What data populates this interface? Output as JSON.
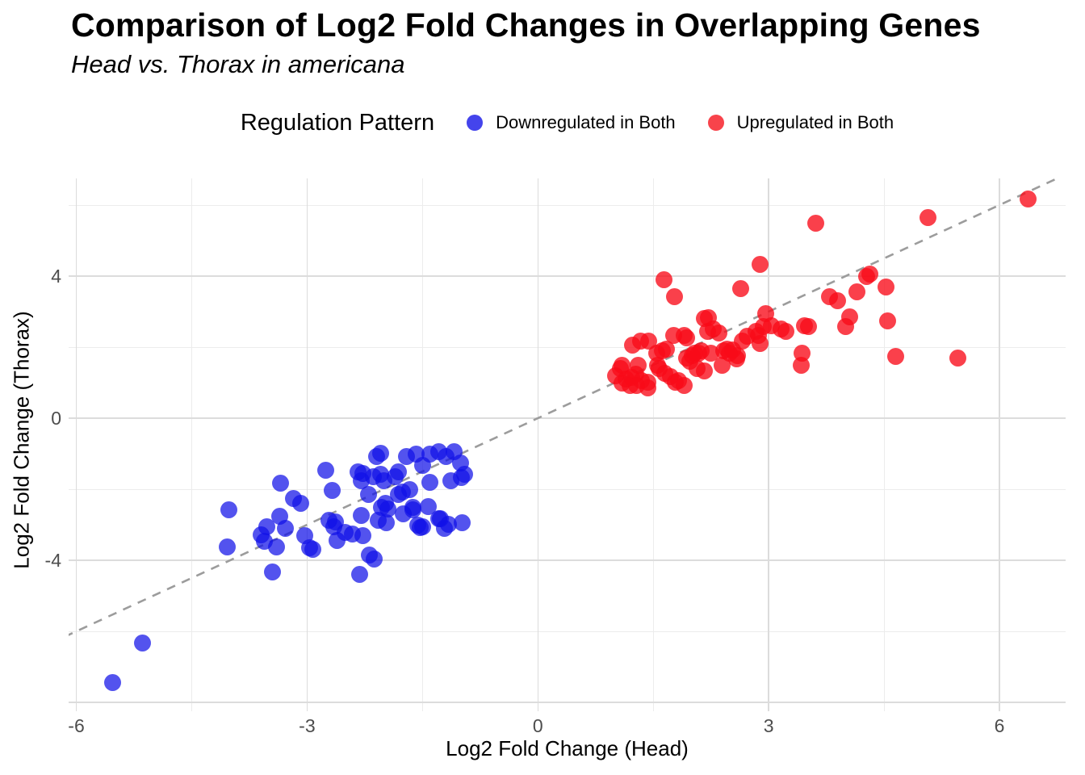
{
  "header": {
    "title": "Comparison of Log2 Fold Changes in Overlapping Genes",
    "subtitle": "Head vs. Thorax in americana"
  },
  "legend": {
    "title": "Regulation Pattern",
    "items": [
      {
        "label": "Downregulated in Both",
        "color": "#4444EC"
      },
      {
        "label": "Upregulated in Both",
        "color": "#F8434B"
      }
    ]
  },
  "chart_data": {
    "type": "scatter",
    "title": "Comparison of Log2 Fold Changes in Overlapping Genes",
    "subtitle": "Head vs. Thorax in americana",
    "xlabel": "Log2 Fold Change (Head)",
    "ylabel": "Log2 Fold Change (Thorax)",
    "xlim": [
      -6.1,
      6.86
    ],
    "ylim": [
      -8.25,
      6.75
    ],
    "x_ticks": [
      -6,
      -3,
      0,
      3,
      6
    ],
    "y_ticks": [
      4,
      0,
      -4
    ],
    "x_tick_labels": [
      "-6",
      "-3",
      "0",
      "3",
      "6"
    ],
    "y_tick_labels": [
      "4",
      "0",
      "-4"
    ],
    "x_major_grid": [
      -6,
      -3,
      0,
      3,
      6
    ],
    "x_minor_grid": [
      -4.5,
      -1.5,
      1.5,
      4.5
    ],
    "y_major_grid": [
      -8,
      -4,
      0,
      4
    ],
    "y_minor_grid": [
      -6,
      -2,
      2,
      6
    ],
    "grid": true,
    "legend_position": "top",
    "reference_line": {
      "style": "dashed",
      "equation": "y = x",
      "color": "#9c9c9c"
    },
    "series": [
      {
        "name": "Downregulated in Both",
        "color": "rgba(16,16,232,0.72)",
        "points": [
          [
            -5.53,
            -7.45
          ],
          [
            -5.14,
            -6.34
          ],
          [
            -4.04,
            -3.62
          ],
          [
            -4.02,
            -2.58
          ],
          [
            -3.6,
            -3.28
          ],
          [
            -3.55,
            -3.46
          ],
          [
            -3.52,
            -3.06
          ],
          [
            -3.45,
            -4.33
          ],
          [
            -3.4,
            -3.62
          ],
          [
            -3.36,
            -2.76
          ],
          [
            -3.35,
            -1.82
          ],
          [
            -3.28,
            -3.1
          ],
          [
            -3.18,
            -2.26
          ],
          [
            -3.08,
            -2.4
          ],
          [
            -3.03,
            -3.3
          ],
          [
            -2.97,
            -3.64
          ],
          [
            -2.93,
            -3.7
          ],
          [
            -2.76,
            -1.46
          ],
          [
            -2.72,
            -2.88
          ],
          [
            -2.67,
            -2.03
          ],
          [
            -2.65,
            -3.05
          ],
          [
            -2.63,
            -2.92
          ],
          [
            -2.61,
            -3.44
          ],
          [
            -2.51,
            -3.22
          ],
          [
            -2.41,
            -3.27
          ],
          [
            -2.34,
            -1.5
          ],
          [
            -2.32,
            -4.4
          ],
          [
            -2.3,
            -1.76
          ],
          [
            -2.3,
            -2.73
          ],
          [
            -2.27,
            -1.56
          ],
          [
            -2.27,
            -3.3
          ],
          [
            -2.2,
            -2.14
          ],
          [
            -2.19,
            -3.86
          ],
          [
            -2.14,
            -1.64
          ],
          [
            -2.13,
            -3.97
          ],
          [
            -2.1,
            -1.09
          ],
          [
            -2.08,
            -2.88
          ],
          [
            -2.04,
            -0.98
          ],
          [
            -2.04,
            -1.59
          ],
          [
            -2.03,
            -2.5
          ],
          [
            -2.0,
            -1.75
          ],
          [
            -1.98,
            -2.4
          ],
          [
            -1.97,
            -2.95
          ],
          [
            -1.95,
            -2.55
          ],
          [
            -1.85,
            -1.64
          ],
          [
            -1.81,
            -1.52
          ],
          [
            -1.81,
            -2.14
          ],
          [
            -1.76,
            -2.09
          ],
          [
            -1.75,
            -2.7
          ],
          [
            -1.71,
            -1.07
          ],
          [
            -1.67,
            -2.02
          ],
          [
            -1.62,
            -2.5
          ],
          [
            -1.62,
            -2.59
          ],
          [
            -1.58,
            -1.02
          ],
          [
            -1.56,
            -3.0
          ],
          [
            -1.53,
            -3.07
          ],
          [
            -1.5,
            -1.34
          ],
          [
            -1.5,
            -3.05
          ],
          [
            -1.43,
            -2.48
          ],
          [
            -1.4,
            -1.0
          ],
          [
            -1.4,
            -1.8
          ],
          [
            -1.29,
            -0.95
          ],
          [
            -1.29,
            -2.82
          ],
          [
            -1.27,
            -2.84
          ],
          [
            -1.22,
            -3.11
          ],
          [
            -1.19,
            -1.07
          ],
          [
            -1.16,
            -2.98
          ],
          [
            -1.13,
            -1.75
          ],
          [
            -1.09,
            -0.95
          ],
          [
            -1.01,
            -1.25
          ],
          [
            -0.99,
            -1.68
          ],
          [
            -0.98,
            -2.95
          ],
          [
            -0.95,
            -1.57
          ]
        ]
      },
      {
        "name": "Upregulated in Both",
        "color": "rgba(249,10,24,0.78)",
        "points": [
          [
            1.01,
            1.2
          ],
          [
            1.07,
            1.39
          ],
          [
            1.09,
            0.98
          ],
          [
            1.09,
            1.48
          ],
          [
            1.15,
            1.1
          ],
          [
            1.2,
            0.91
          ],
          [
            1.22,
            1.14
          ],
          [
            1.23,
            2.05
          ],
          [
            1.27,
            1.25
          ],
          [
            1.28,
            0.93
          ],
          [
            1.3,
            1.5
          ],
          [
            1.33,
            2.16
          ],
          [
            1.35,
            1.05
          ],
          [
            1.43,
            0.86
          ],
          [
            1.44,
            2.18
          ],
          [
            1.43,
            1.02
          ],
          [
            1.54,
            1.82
          ],
          [
            1.56,
            1.48
          ],
          [
            1.58,
            1.39
          ],
          [
            1.62,
            1.89
          ],
          [
            1.64,
            3.89
          ],
          [
            1.65,
            1.27
          ],
          [
            1.67,
            1.95
          ],
          [
            1.72,
            1.16
          ],
          [
            1.77,
            2.34
          ],
          [
            1.78,
            3.43
          ],
          [
            1.79,
            1.02
          ],
          [
            1.83,
            1.05
          ],
          [
            1.9,
            0.93
          ],
          [
            1.9,
            2.34
          ],
          [
            1.93,
            1.7
          ],
          [
            1.93,
            2.27
          ],
          [
            1.97,
            1.6
          ],
          [
            2.01,
            1.77
          ],
          [
            2.04,
            1.82
          ],
          [
            2.07,
            1.39
          ],
          [
            2.09,
            1.84
          ],
          [
            2.12,
            1.89
          ],
          [
            2.16,
            1.32
          ],
          [
            2.16,
            2.8
          ],
          [
            2.21,
            2.45
          ],
          [
            2.22,
            2.84
          ],
          [
            2.25,
            1.82
          ],
          [
            2.28,
            2.52
          ],
          [
            2.35,
            2.39
          ],
          [
            2.4,
            1.48
          ],
          [
            2.42,
            1.89
          ],
          [
            2.46,
            1.95
          ],
          [
            2.49,
            1.82
          ],
          [
            2.53,
            1.93
          ],
          [
            2.58,
            1.66
          ],
          [
            2.59,
            1.77
          ],
          [
            2.64,
            3.64
          ],
          [
            2.66,
            2.16
          ],
          [
            2.72,
            2.3
          ],
          [
            2.84,
            2.45
          ],
          [
            2.87,
            2.34
          ],
          [
            2.89,
            2.11
          ],
          [
            2.89,
            4.32
          ],
          [
            2.93,
            2.57
          ],
          [
            2.96,
            2.95
          ],
          [
            3.03,
            2.61
          ],
          [
            3.16,
            2.52
          ],
          [
            3.22,
            2.45
          ],
          [
            3.42,
            1.5
          ],
          [
            3.43,
            1.84
          ],
          [
            3.47,
            2.61
          ],
          [
            3.52,
            2.57
          ],
          [
            3.61,
            5.48
          ],
          [
            3.79,
            3.43
          ],
          [
            3.9,
            3.3
          ],
          [
            4.0,
            2.57
          ],
          [
            4.05,
            2.86
          ],
          [
            4.15,
            3.56
          ],
          [
            4.27,
            4.0
          ],
          [
            4.31,
            4.05
          ],
          [
            4.53,
            3.7
          ],
          [
            4.55,
            2.75
          ],
          [
            4.65,
            1.73
          ],
          [
            5.07,
            5.64
          ],
          [
            5.46,
            1.7
          ],
          [
            6.37,
            6.16
          ]
        ]
      }
    ]
  }
}
